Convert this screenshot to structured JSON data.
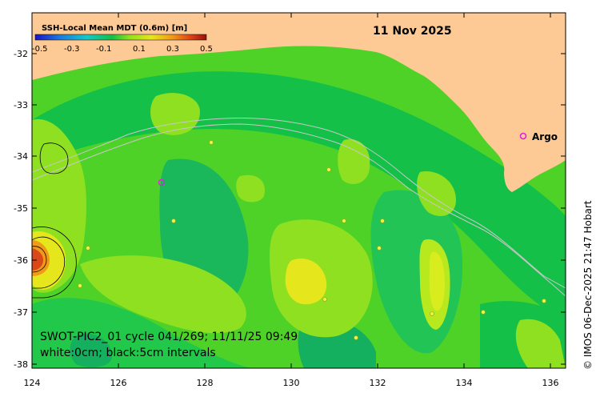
{
  "map": {
    "date": "11 Nov 2025",
    "colorbar_title": "SSH-Local Mean MDT (0.6m) [m]",
    "colorbar_ticks": [
      "-0.5",
      "-0.3",
      "-0.1",
      "0.1",
      "0.3",
      "0.5"
    ],
    "x_ticks": [
      "124",
      "126",
      "128",
      "130",
      "132",
      "134",
      "136"
    ],
    "y_ticks": [
      "-32",
      "-33",
      "-34",
      "-35",
      "-36",
      "-37",
      "-38"
    ],
    "argo_label": "Argo",
    "argo_marker": "o",
    "caption_line1": "SWOT-PIC2_01 cycle 041/269; 11/11/25 09:49",
    "caption_line2": "white:0cm; black:5cm intervals",
    "credit": "© IMOS 06-Dec-2025 21:47 Hobart"
  },
  "colors": {
    "land": "#fdca95",
    "deep_ocean": "#14c048",
    "mid_ocean": "#4fd228",
    "light_ocean": "#8fe020",
    "high": "#e6e61c",
    "argo": "#e020e0"
  }
}
